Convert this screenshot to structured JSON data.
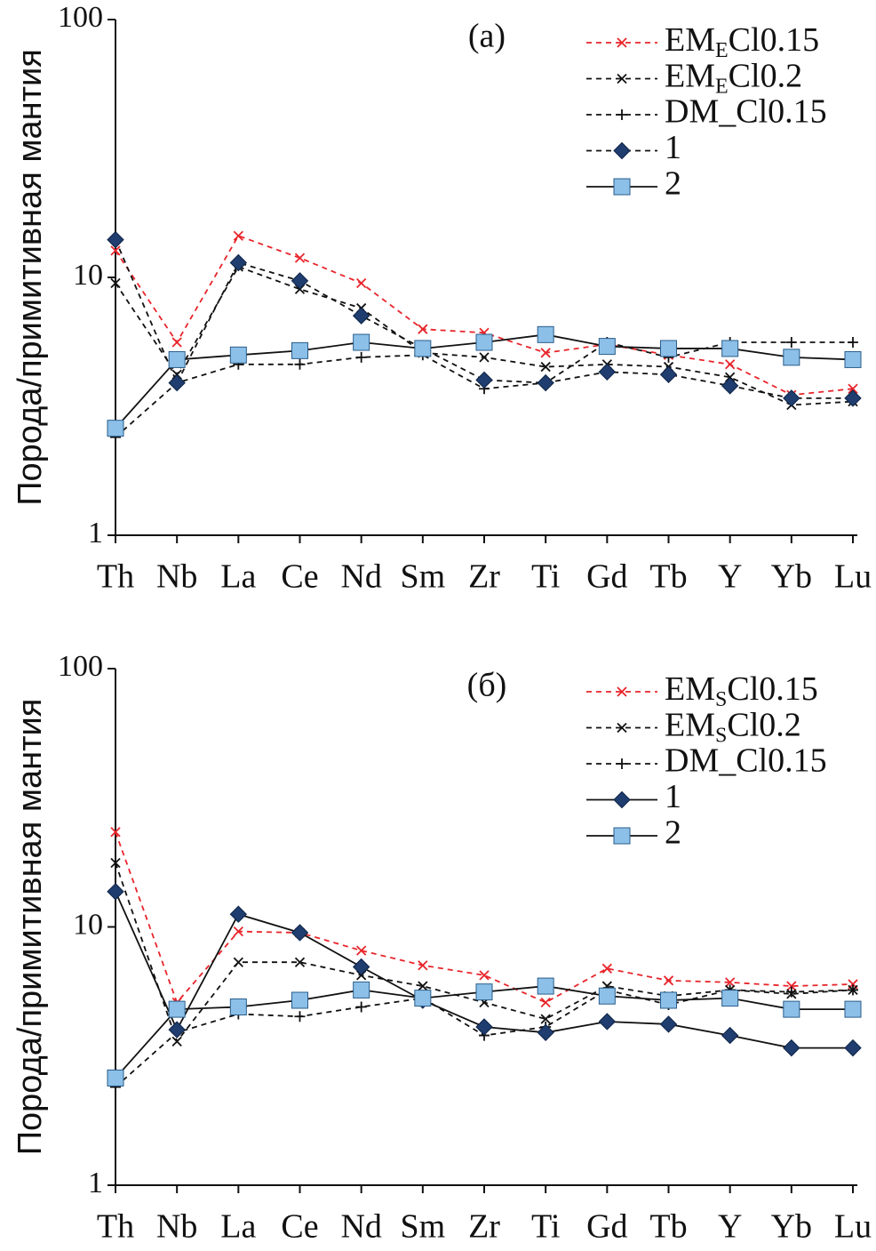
{
  "chart_data": [
    {
      "type": "line",
      "annotation": "(а)",
      "y_label": "Порода/примитивная мантия",
      "log_scale": true,
      "categories": [
        "Th",
        "Nb",
        "La",
        "Ce",
        "Nd",
        "Sm",
        "Zr",
        "Ti",
        "Gd",
        "Tb",
        "Y",
        "Yb",
        "Lu"
      ],
      "ylim": [
        1,
        100
      ],
      "yticks": [
        1,
        10,
        100
      ],
      "legend": "upper right",
      "series": [
        {
          "name": [
            "EM",
            "E",
            "Cl0.15"
          ],
          "color": "#e8252b",
          "dash": true,
          "marker": "x",
          "values": [
            12.7,
            5.6,
            14.5,
            11.9,
            9.5,
            6.3,
            6.1,
            5.1,
            5.5,
            5.0,
            4.6,
            3.5,
            3.7
          ]
        },
        {
          "name": [
            "EM",
            "E",
            "Cl0.2"
          ],
          "color": "#111111",
          "dash": true,
          "marker": "x",
          "values": [
            9.5,
            4.2,
            11.0,
            9.0,
            7.6,
            5.1,
            4.9,
            4.5,
            4.6,
            4.5,
            4.1,
            3.2,
            3.3
          ]
        },
        {
          "name": "DM_Cl0.15",
          "color": "#111111",
          "dash": true,
          "marker": "plus",
          "values": [
            2.4,
            3.9,
            4.6,
            4.6,
            4.9,
            5.0,
            3.7,
            3.9,
            5.6,
            4.9,
            5.6,
            5.6,
            5.6
          ]
        },
        {
          "name": "1",
          "color": "#1f3d6e",
          "dash": true,
          "marker": "diamond",
          "values": [
            14.0,
            3.9,
            11.4,
            9.7,
            7.1,
            5.3,
            4.0,
            3.9,
            4.3,
            4.2,
            3.8,
            3.4,
            3.4
          ]
        },
        {
          "name": "2",
          "color": "#8cc0e8",
          "dash": false,
          "marker": "square",
          "values": [
            2.6,
            4.8,
            5.0,
            5.2,
            5.6,
            5.3,
            5.6,
            6.0,
            5.4,
            5.3,
            5.3,
            4.9,
            4.8
          ]
        }
      ]
    },
    {
      "type": "line",
      "annotation": "(б)",
      "y_label": "Порода/примитивная мантия",
      "log_scale": true,
      "categories": [
        "Th",
        "Nb",
        "La",
        "Ce",
        "Nd",
        "Sm",
        "Zr",
        "Ti",
        "Gd",
        "Tb",
        "Y",
        "Yb",
        "Lu"
      ],
      "ylim": [
        1,
        100
      ],
      "yticks": [
        1,
        10,
        100
      ],
      "legend": "upper right",
      "series": [
        {
          "name": [
            "EM",
            "S",
            "Cl0.15"
          ],
          "color": "#e8252b",
          "dash": true,
          "marker": "x",
          "values": [
            23.3,
            5.1,
            9.6,
            9.5,
            8.1,
            7.1,
            6.5,
            5.1,
            6.9,
            6.2,
            6.1,
            5.9,
            6.0
          ]
        },
        {
          "name": [
            "EM",
            "S",
            "Cl0.2"
          ],
          "color": "#111111",
          "dash": true,
          "marker": "x",
          "values": [
            17.7,
            3.6,
            7.3,
            7.3,
            6.5,
            5.9,
            5.1,
            4.4,
            5.9,
            5.4,
            5.7,
            5.5,
            5.7
          ]
        },
        {
          "name": "DM_Cl0.15",
          "color": "#111111",
          "dash": true,
          "marker": "plus",
          "values": [
            2.4,
            3.9,
            4.6,
            4.5,
            4.9,
            5.3,
            3.8,
            4.1,
            5.7,
            5.0,
            5.7,
            5.6,
            5.7
          ]
        },
        {
          "name": "1",
          "color": "#1f3d6e",
          "dash": false,
          "marker": "diamond",
          "values": [
            13.7,
            4.0,
            11.2,
            9.5,
            7.0,
            5.2,
            4.1,
            3.9,
            4.3,
            4.2,
            3.8,
            3.4,
            3.4
          ]
        },
        {
          "name": "2",
          "color": "#8cc0e8",
          "dash": false,
          "marker": "square",
          "values": [
            2.6,
            4.8,
            4.9,
            5.2,
            5.7,
            5.3,
            5.6,
            5.9,
            5.4,
            5.2,
            5.3,
            4.8,
            4.8
          ]
        }
      ]
    }
  ]
}
